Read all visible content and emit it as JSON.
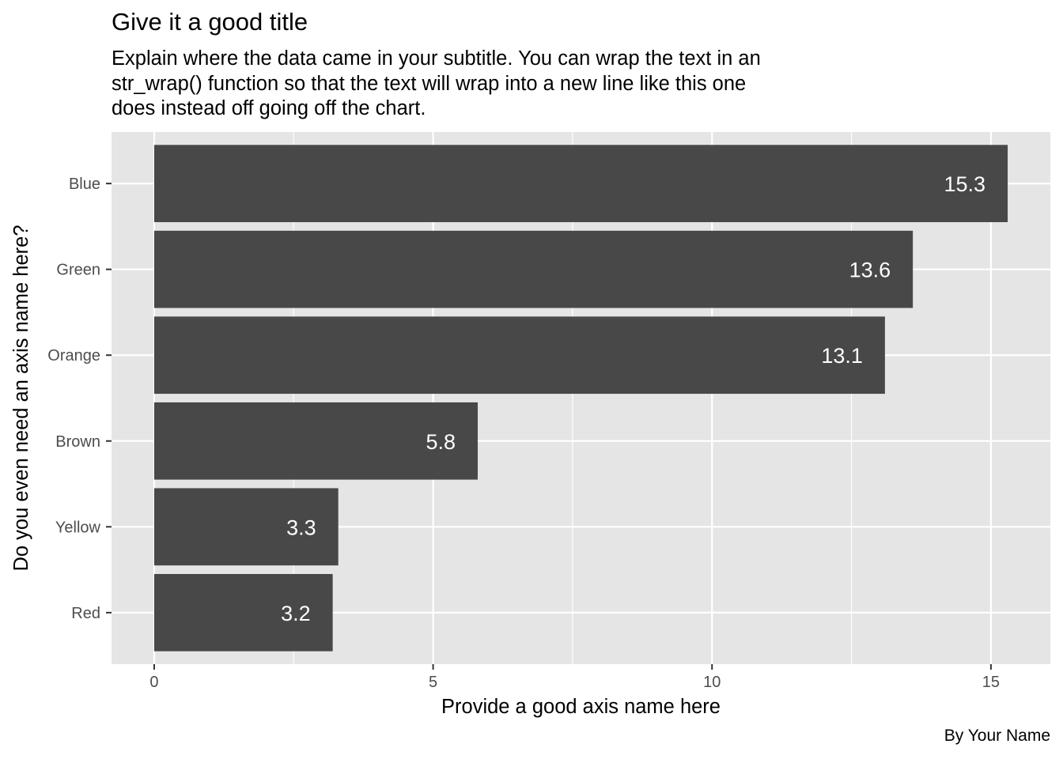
{
  "chart_data": {
    "type": "bar",
    "orientation": "horizontal",
    "title": "Give it a good title",
    "subtitle_lines": [
      "Explain where the data came in your subtitle. You can wrap the text in an",
      "str_wrap() function so that the text will wrap into a new line like this one",
      "does instead off going off the chart."
    ],
    "caption": "By Your Name",
    "xlabel": "Provide a good axis name here",
    "ylabel": "Do you even need an axis name here?",
    "categories": [
      "Blue",
      "Green",
      "Orange",
      "Brown",
      "Yellow",
      "Red"
    ],
    "values": [
      15.3,
      13.6,
      13.1,
      5.8,
      3.3,
      3.2
    ],
    "data_labels": [
      "15.3",
      "13.6",
      "13.1",
      "5.8",
      "3.3",
      "3.2"
    ],
    "x_ticks": [
      0,
      5,
      10,
      15
    ],
    "x_tick_labels": [
      "0",
      "5",
      "10",
      "15"
    ],
    "xlim": [
      -0.765,
      16.065
    ],
    "grid": true,
    "legend": "none",
    "colors": {
      "bar": "#484848",
      "panel": "#e5e5e5",
      "grid": "#ffffff",
      "data_label": "#ffffff"
    }
  }
}
